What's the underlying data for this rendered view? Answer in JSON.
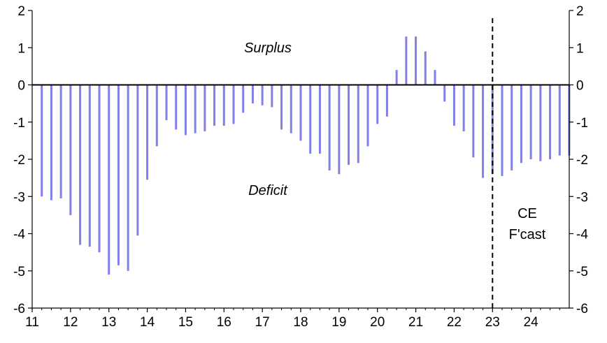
{
  "chart_data": {
    "type": "bar",
    "title": "",
    "xlabel": "",
    "ylabel": "",
    "ylim": [
      -6,
      2
    ],
    "yticks": [
      2,
      1,
      0,
      -1,
      -2,
      -3,
      -4,
      -5,
      -6
    ],
    "xlim": [
      2011,
      2025
    ],
    "xticks": [
      {
        "value": 2011,
        "label": "11"
      },
      {
        "value": 2012,
        "label": "12"
      },
      {
        "value": 2013,
        "label": "13"
      },
      {
        "value": 2014,
        "label": "14"
      },
      {
        "value": 2015,
        "label": "15"
      },
      {
        "value": 2016,
        "label": "16"
      },
      {
        "value": 2017,
        "label": "17"
      },
      {
        "value": 2018,
        "label": "18"
      },
      {
        "value": 2019,
        "label": "19"
      },
      {
        "value": 2020,
        "label": "20"
      },
      {
        "value": 2021,
        "label": "21"
      },
      {
        "value": 2022,
        "label": "22"
      },
      {
        "value": 2023,
        "label": "23"
      },
      {
        "value": 2024,
        "label": "24"
      }
    ],
    "grid": false,
    "dual_y_axis": true,
    "bar_color": "#8080e8",
    "forecast_start": 2023,
    "series": [
      {
        "frequency": "quarterly",
        "points": [
          {
            "x": "2011 Q1",
            "y": -3.0
          },
          {
            "x": "2011 Q2",
            "y": -3.1
          },
          {
            "x": "2011 Q3",
            "y": -3.05
          },
          {
            "x": "2011 Q4",
            "y": -3.5
          },
          {
            "x": "2012 Q1",
            "y": -4.3
          },
          {
            "x": "2012 Q2",
            "y": -4.35
          },
          {
            "x": "2012 Q3",
            "y": -4.5
          },
          {
            "x": "2012 Q4",
            "y": -5.1
          },
          {
            "x": "2013 Q1",
            "y": -4.85
          },
          {
            "x": "2013 Q2",
            "y": -5.0
          },
          {
            "x": "2013 Q3",
            "y": -4.05
          },
          {
            "x": "2013 Q4",
            "y": -2.55
          },
          {
            "x": "2014 Q1",
            "y": -1.65
          },
          {
            "x": "2014 Q2",
            "y": -0.95
          },
          {
            "x": "2014 Q3",
            "y": -1.2
          },
          {
            "x": "2014 Q4",
            "y": -1.35
          },
          {
            "x": "2015 Q1",
            "y": -1.3
          },
          {
            "x": "2015 Q2",
            "y": -1.25
          },
          {
            "x": "2015 Q3",
            "y": -1.1
          },
          {
            "x": "2015 Q4",
            "y": -1.1
          },
          {
            "x": "2016 Q1",
            "y": -1.05
          },
          {
            "x": "2016 Q2",
            "y": -0.75
          },
          {
            "x": "2016 Q3",
            "y": -0.5
          },
          {
            "x": "2016 Q4",
            "y": -0.55
          },
          {
            "x": "2017 Q1",
            "y": -0.6
          },
          {
            "x": "2017 Q2",
            "y": -1.2
          },
          {
            "x": "2017 Q3",
            "y": -1.3
          },
          {
            "x": "2017 Q4",
            "y": -1.5
          },
          {
            "x": "2018 Q1",
            "y": -1.85
          },
          {
            "x": "2018 Q2",
            "y": -1.85
          },
          {
            "x": "2018 Q3",
            "y": -2.3
          },
          {
            "x": "2018 Q4",
            "y": -2.4
          },
          {
            "x": "2019 Q1",
            "y": -2.15
          },
          {
            "x": "2019 Q2",
            "y": -2.1
          },
          {
            "x": "2019 Q3",
            "y": -1.65
          },
          {
            "x": "2019 Q4",
            "y": -1.05
          },
          {
            "x": "2020 Q1",
            "y": -0.85
          },
          {
            "x": "2020 Q2",
            "y": 0.4
          },
          {
            "x": "2020 Q3",
            "y": 1.3
          },
          {
            "x": "2020 Q4",
            "y": 1.3
          },
          {
            "x": "2021 Q1",
            "y": 0.9
          },
          {
            "x": "2021 Q2",
            "y": 0.4
          },
          {
            "x": "2021 Q3",
            "y": -0.45
          },
          {
            "x": "2021 Q4",
            "y": -1.1
          },
          {
            "x": "2022 Q1",
            "y": -1.25
          },
          {
            "x": "2022 Q2",
            "y": -1.95
          },
          {
            "x": "2022 Q3",
            "y": -2.5
          },
          {
            "x": "2022 Q4",
            "y": -2.4
          },
          {
            "x": "2023 Q1",
            "y": -2.45
          },
          {
            "x": "2023 Q2",
            "y": -2.3
          },
          {
            "x": "2023 Q3",
            "y": -2.1
          },
          {
            "x": "2023 Q4",
            "y": -2.0
          },
          {
            "x": "2024 Q1",
            "y": -2.05
          },
          {
            "x": "2024 Q2",
            "y": -2.0
          },
          {
            "x": "2024 Q3",
            "y": -1.9
          },
          {
            "x": "2024 Q4",
            "y": -1.9
          }
        ]
      }
    ],
    "annotations": {
      "surplus": "Surplus",
      "deficit": "Deficit",
      "forecast_line1": "CE",
      "forecast_line2": "F'cast"
    }
  }
}
